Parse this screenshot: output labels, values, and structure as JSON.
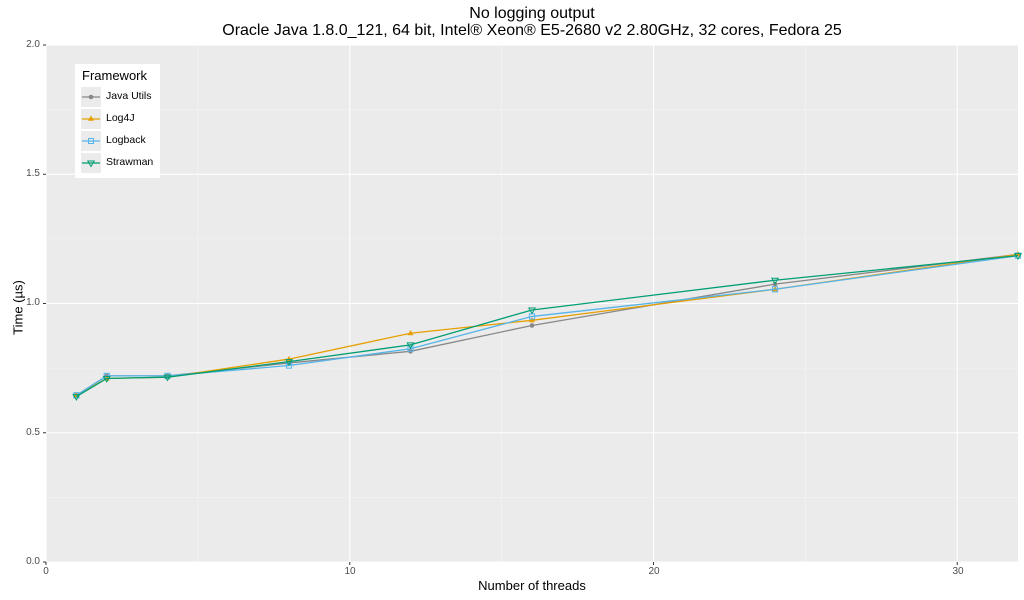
{
  "chart_data": {
    "type": "line",
    "title": "No logging output",
    "subtitle": "Oracle Java 1.8.0_121, 64 bit, Intel® Xeon® E5-2680 v2 2.80GHz, 32 cores, Fedora 25",
    "xlabel": "Number of threads",
    "ylabel": "Time (µs)",
    "xlim": [
      0,
      32
    ],
    "ylim": [
      0,
      2.0
    ],
    "x_ticks": [
      "0",
      "10",
      "20",
      "30"
    ],
    "y_ticks": [
      "0.0",
      "0.5",
      "1.0",
      "1.5",
      "2.0"
    ],
    "grid": true,
    "legend_title": "Framework",
    "legend_position": "top-left inside",
    "x": [
      1,
      2,
      4,
      8,
      12,
      16,
      24,
      32
    ],
    "series": [
      {
        "name": "Java Utils",
        "color": "#888888",
        "marker": "circle",
        "values": [
          0.645,
          0.72,
          0.72,
          0.77,
          0.815,
          0.915,
          1.075,
          1.19
        ]
      },
      {
        "name": "Log4J",
        "color": "#E69F00",
        "marker": "triangle-up",
        "values": [
          0.645,
          0.71,
          0.715,
          0.785,
          0.885,
          0.935,
          1.055,
          1.19
        ]
      },
      {
        "name": "Logback",
        "color": "#56B4E9",
        "marker": "square-open",
        "values": [
          0.645,
          0.72,
          0.72,
          0.76,
          0.825,
          0.95,
          1.055,
          1.185
        ]
      },
      {
        "name": "Strawman",
        "color": "#009E73",
        "marker": "triangle-down-open",
        "values": [
          0.64,
          0.71,
          0.715,
          0.775,
          0.84,
          0.975,
          1.09,
          1.185
        ]
      }
    ]
  },
  "legend": {
    "title": "Framework",
    "items": [
      "Java Utils",
      "Log4J",
      "Logback",
      "Strawman"
    ]
  }
}
